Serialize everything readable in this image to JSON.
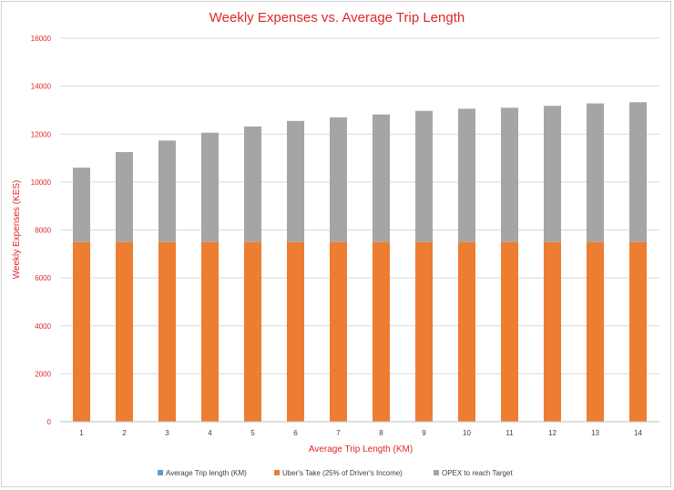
{
  "chart_data": {
    "type": "bar",
    "stacked": true,
    "title": "Weekly Expenses vs. Average Trip Length",
    "xlabel": "Average Trip Length (KM)",
    "ylabel": "Weekly Expenses (KES)",
    "ylim": [
      0,
      16000
    ],
    "yticks": [
      "0",
      "2000",
      "4000",
      "6000",
      "8000",
      "10000",
      "12000",
      "14000",
      "16000"
    ],
    "categories": [
      "1",
      "2",
      "3",
      "4",
      "5",
      "6",
      "7",
      "8",
      "9",
      "10",
      "11",
      "12",
      "13",
      "14"
    ],
    "grid": true,
    "legend_position": "bottom",
    "series": [
      {
        "name": "Average Trip length (KM)",
        "color": "#5b9bd5",
        "values": [
          0,
          0,
          0,
          0,
          0,
          0,
          0,
          0,
          0,
          0,
          0,
          0,
          0,
          0
        ]
      },
      {
        "name": "Uber's Take (25% of Driver's Income)",
        "color": "#ed7d31",
        "values": [
          7500,
          7500,
          7500,
          7500,
          7500,
          7500,
          7500,
          7500,
          7500,
          7500,
          7500,
          7500,
          7500,
          7500
        ]
      },
      {
        "name": "OPEX to reach Target",
        "color": "#a5a5a5",
        "values": [
          3100,
          3750,
          4230,
          4560,
          4820,
          5050,
          5200,
          5320,
          5470,
          5560,
          5600,
          5680,
          5780,
          5830
        ]
      }
    ]
  }
}
